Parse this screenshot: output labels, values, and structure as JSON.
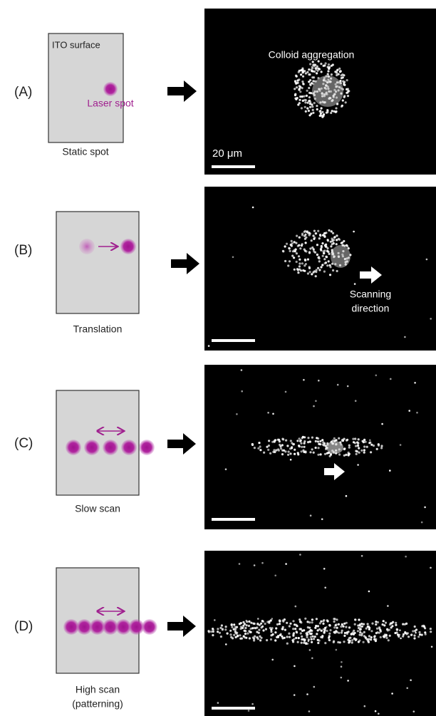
{
  "panels": [
    {
      "label": "(A)",
      "caption": "Static spot",
      "surface_label": "ITO surface",
      "spot_label": "Laser spot",
      "image_annotation": "Colloid aggregation",
      "scale_bar_label": "20 μm"
    },
    {
      "label": "(B)",
      "caption": "Translation",
      "image_annotation": [
        "Scanning",
        "direction"
      ]
    },
    {
      "label": "(C)",
      "caption": "Slow scan"
    },
    {
      "label": "(D)",
      "caption": [
        "High scan",
        "(patterning)"
      ]
    }
  ]
}
